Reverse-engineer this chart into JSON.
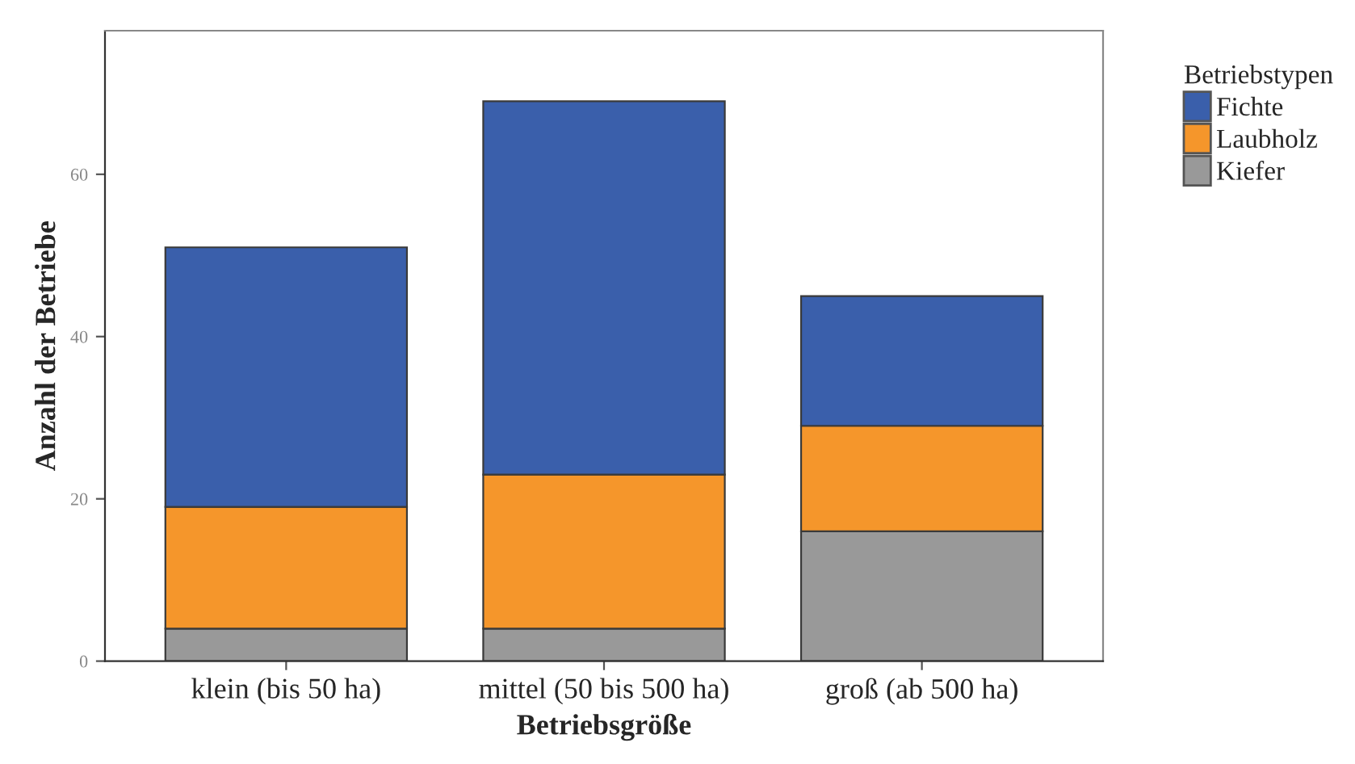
{
  "chart_data": {
    "type": "bar",
    "stacked": true,
    "xlabel": "Betriebsgröße",
    "ylabel": "Anzahl der Betriebe",
    "legend_title": "Betriebstypen",
    "categories": [
      "klein (bis 50 ha)",
      "mittel (50 bis 500 ha)",
      "groß (ab 500 ha)"
    ],
    "series": [
      {
        "name": "Kiefer",
        "color": "#999999",
        "values": [
          4,
          4,
          16
        ]
      },
      {
        "name": "Laubholz",
        "color": "#f5962b",
        "values": [
          15,
          19,
          13
        ]
      },
      {
        "name": "Fichte",
        "color": "#3a5fab",
        "values": [
          32,
          46,
          16
        ]
      }
    ],
    "ylim": [
      0,
      77.7
    ],
    "yticks": [
      0,
      20,
      40,
      60
    ],
    "grid": false,
    "legend": "top right"
  }
}
